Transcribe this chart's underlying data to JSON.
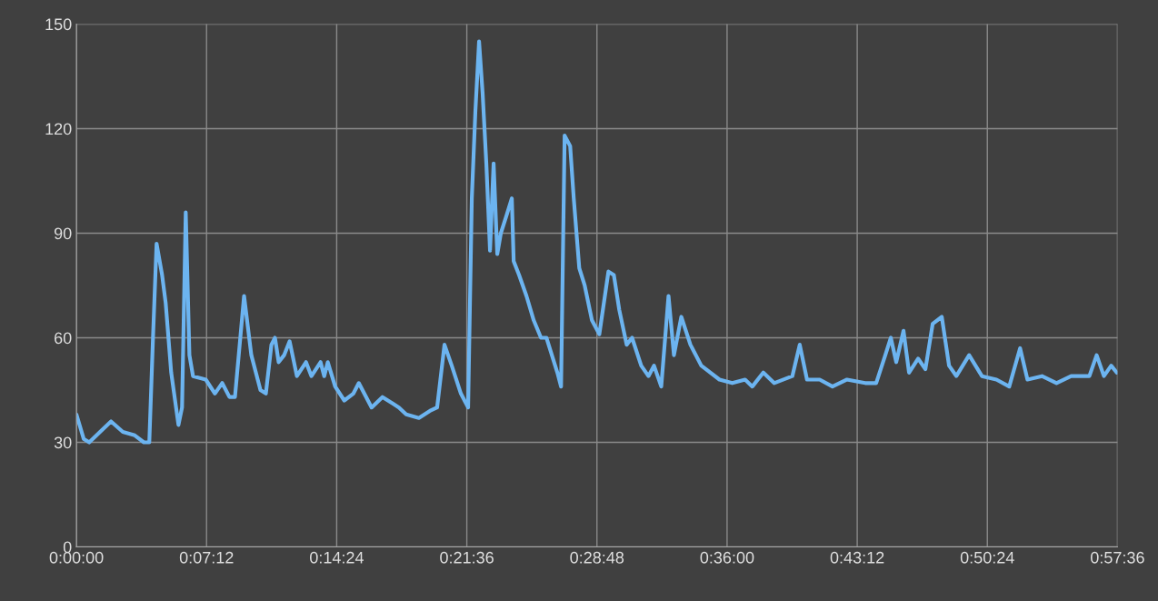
{
  "chart_data": {
    "type": "line",
    "x": [
      0,
      0.0067,
      0.0118,
      0.0218,
      0.0319,
      0.0428,
      0.0538,
      0.0622,
      0.0672,
      0.0706,
      0.0739,
      0.079,
      0.0823,
      0.0874,
      0.0941,
      0.0974,
      0.1008,
      0.1042,
      0.1075,
      0.1193,
      0.1277,
      0.1344,
      0.1411,
      0.1462,
      0.1546,
      0.1613,
      0.1697,
      0.1747,
      0.1798,
      0.1831,
      0.1865,
      0.1915,
      0.1966,
      0.2033,
      0.2117,
      0.2167,
      0.2251,
      0.2285,
      0.2318,
      0.2386,
      0.247,
      0.2554,
      0.2604,
      0.2722,
      0.2822,
      0.2923,
      0.2974,
      0.3041,
      0.3158,
      0.3259,
      0.3326,
      0.3394,
      0.3461,
      0.3545,
      0.3612,
      0.3646,
      0.3679,
      0.3713,
      0.3746,
      0.378,
      0.3814,
      0.3847,
      0.3881,
      0.3914,
      0.3965,
      0.4015,
      0.4032,
      0.4082,
      0.415,
      0.4217,
      0.4284,
      0.4334,
      0.4435,
      0.4469,
      0.4502,
      0.4553,
      0.4586,
      0.4637,
      0.4687,
      0.4754,
      0.4822,
      0.4906,
      0.4956,
      0.5006,
      0.5074,
      0.5124,
      0.5208,
      0.5275,
      0.5326,
      0.5393,
      0.546,
      0.551,
      0.5578,
      0.5662,
      0.5762,
      0.593,
      0.6048,
      0.6166,
      0.6233,
      0.6334,
      0.6434,
      0.6602,
      0.667,
      0.6737,
      0.6854,
      0.6972,
      0.7106,
      0.7274,
      0.7375,
      0.7459,
      0.751,
      0.756,
      0.7627,
      0.7678,
      0.7762,
      0.7829,
      0.7896,
      0.798,
      0.8047,
      0.8114,
      0.8232,
      0.835,
      0.8484,
      0.8602,
      0.8702,
      0.877,
      0.8904,
      0.9038,
      0.9173,
      0.9341,
      0.9408,
      0.9475,
      0.9542,
      0.9593
    ],
    "series": [
      {
        "color": "#6cb4f0",
        "values": [
          38,
          31,
          30,
          33,
          36,
          33,
          32,
          30,
          30,
          60,
          87,
          78,
          70,
          50,
          35,
          40,
          96,
          55,
          49,
          48,
          44,
          47,
          43,
          43,
          72,
          55,
          45,
          44,
          58,
          60,
          53,
          55,
          59,
          49,
          53,
          49,
          53,
          49,
          53,
          46,
          42,
          44,
          47,
          40,
          43,
          41,
          40,
          38,
          37,
          39,
          40,
          58,
          52,
          44,
          40,
          100,
          125,
          145,
          130,
          110,
          85,
          110,
          84,
          90,
          95,
          100,
          82,
          78,
          72,
          65,
          60,
          60,
          50,
          46,
          118,
          115,
          100,
          80,
          75,
          65,
          61,
          79,
          78,
          68,
          58,
          60,
          52,
          49,
          52,
          46,
          72,
          55,
          66,
          58,
          52,
          48,
          47,
          48,
          46,
          50,
          47,
          49,
          58,
          48,
          48,
          46,
          48,
          47,
          47,
          55,
          60,
          53,
          62,
          50,
          54,
          51,
          64,
          66,
          52,
          49,
          55,
          49,
          48,
          46,
          57,
          48,
          49,
          47,
          49,
          49,
          55,
          49,
          52,
          50
        ]
      }
    ],
    "xlim": [
      0,
      0.96
    ],
    "xticks": [
      {
        "value": 0,
        "label": "0:00:00"
      },
      {
        "value": 0.12,
        "label": "0:07:12"
      },
      {
        "value": 0.24,
        "label": "0:14:24"
      },
      {
        "value": 0.36,
        "label": "0:21:36"
      },
      {
        "value": 0.48,
        "label": "0:28:48"
      },
      {
        "value": 0.6,
        "label": "0:36:00"
      },
      {
        "value": 0.72,
        "label": "0:43:12"
      },
      {
        "value": 0.84,
        "label": "0:50:24"
      },
      {
        "value": 0.96,
        "label": "0:57:36"
      }
    ],
    "ylim": [
      0,
      150
    ],
    "yticks": [
      0,
      30,
      60,
      90,
      120,
      150
    ],
    "grid": true,
    "line_style": "solid"
  }
}
